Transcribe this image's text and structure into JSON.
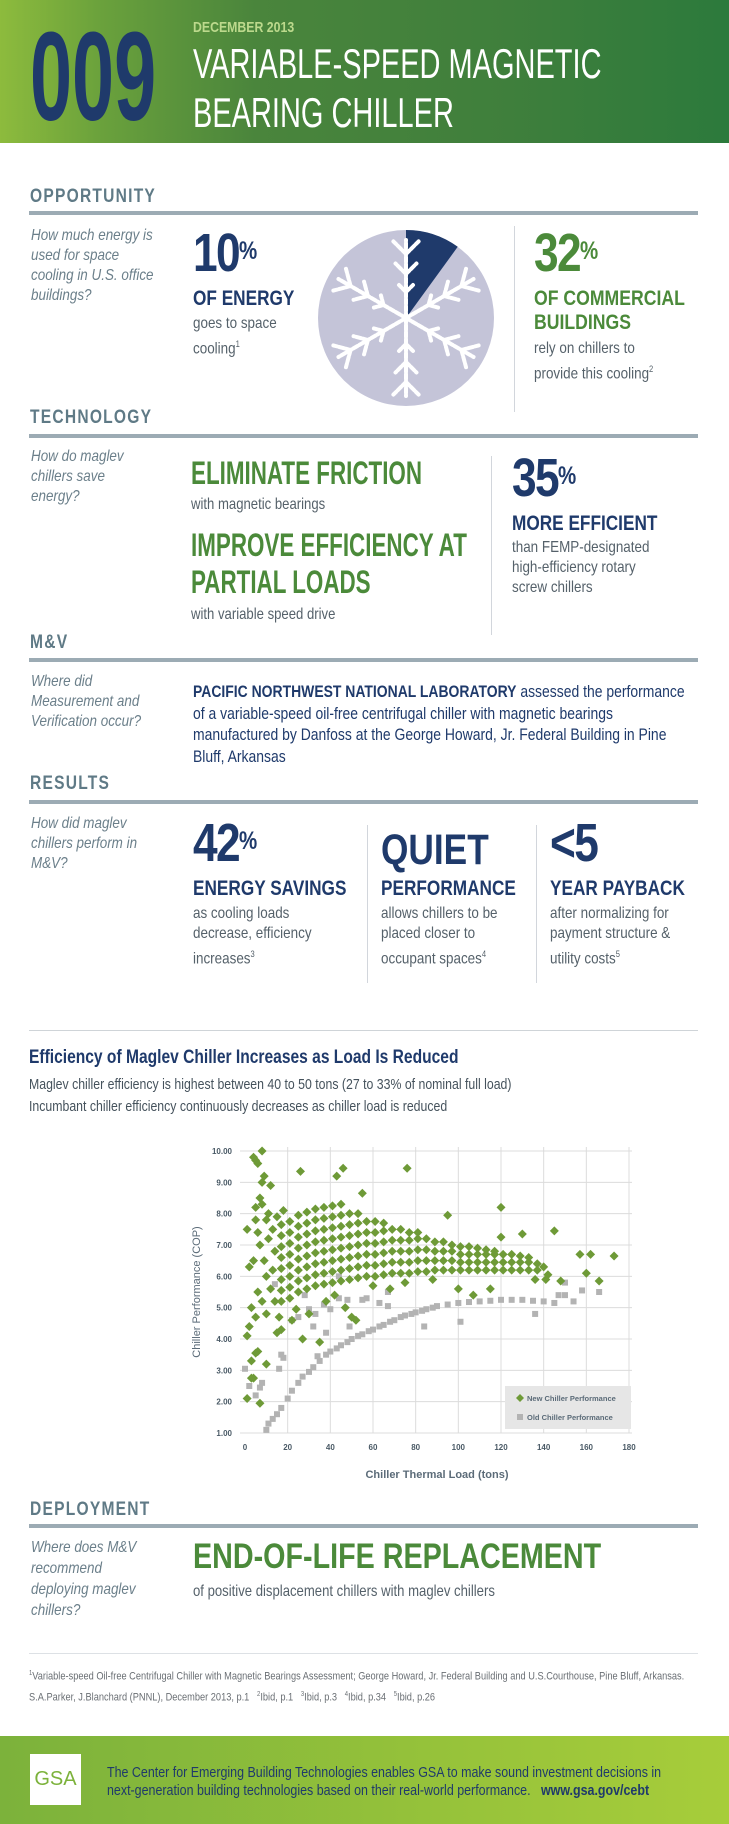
{
  "header": {
    "number": "009",
    "date": "DECEMBER 2013",
    "title_line1": "VARIABLE-SPEED MAGNETIC",
    "title_line2": "BEARING CHILLER"
  },
  "opportunity": {
    "heading": "OPPORTUNITY",
    "question": "How much energy is used for space cooling in U.S. office buildings?",
    "stat1": {
      "value": "10",
      "unit": "%",
      "label": "OF ENERGY",
      "text": "goes to space cooling",
      "note": "1"
    },
    "pie": {
      "share_percent": 10,
      "highlight_color": "#1f3a6b",
      "rest_color": "#c4c4d8",
      "icon": "snowflake-icon"
    },
    "stat2": {
      "value": "32",
      "unit": "%",
      "label": "OF COMMERCIAL BUILDINGS",
      "text": "rely on chillers to provide this cooling",
      "note": "2"
    }
  },
  "technology": {
    "heading": "TECHNOLOGY",
    "question": "How do maglev chillers save energy?",
    "point1": {
      "title": "ELIMINATE FRICTION",
      "text": "with magnetic bearings"
    },
    "point2": {
      "title": "IMPROVE EFFICIENCY AT PARTIAL LOADS",
      "text": "with variable speed drive"
    },
    "stat": {
      "value": "35",
      "unit": "%",
      "label": "MORE EFFICIENT",
      "text": "than FEMP-designated high-efficiency rotary screw chillers"
    }
  },
  "mv": {
    "heading": "M&V",
    "question": "Where did Measurement and Verification occur?",
    "lead": "PACIFIC NORTHWEST NATIONAL LABORATORY",
    "text": " assessed the performance of a variable-speed oil-free centrifugal chiller with magnetic bearings manufactured by Danfoss at the George Howard, Jr. Federal Building in Pine Bluff, Arkansas"
  },
  "results": {
    "heading": "RESULTS",
    "question": "How did maglev chillers perform in M&V?",
    "items": [
      {
        "value": "42",
        "unit": "%",
        "label": "ENERGY SAVINGS",
        "text": "as cooling loads decrease, efficiency increases",
        "note": "3"
      },
      {
        "value": "QUIET",
        "unit": "",
        "label": "PERFORMANCE",
        "text": "allows chillers to be placed closer to occupant spaces",
        "note": "4"
      },
      {
        "value": "<5",
        "unit": "",
        "label": "YEAR PAYBACK",
        "text": "after normalizing for payment structure & utility costs",
        "note": "5"
      }
    ]
  },
  "chart": {
    "title": "Efficiency of Maglev Chiller Increases as Load Is Reduced",
    "subtitle1": "Maglev chiller efficiency is highest between 40 to 50 tons (27 to 33% of nominal full load)",
    "subtitle2": "Incumbant chiller efficiency continuously decreases as chiller load is reduced"
  },
  "chart_data": {
    "type": "scatter",
    "title": "",
    "xlabel": "Chiller Thermal Load (tons)",
    "ylabel": "Chiller Performance (COP)",
    "xlim": [
      0,
      180
    ],
    "ylim": [
      1,
      10
    ],
    "grid": true,
    "legend": "bottom-right",
    "xticks": [
      "0",
      "20",
      "40",
      "60",
      "80",
      "100",
      "120",
      "140",
      "160",
      "180"
    ],
    "yticks": [
      "1.00",
      "2.00",
      "3.00",
      "4.00",
      "5.00",
      "6.00",
      "7.00",
      "8.00",
      "9.00",
      "10.00"
    ],
    "series": [
      {
        "name": "New Chiller Performance",
        "marker": "diamond",
        "color": "#6e9a37",
        "columns": [
          {
            "x": 17,
            "y": [
              5.2,
              5.55,
              5.9,
              6.25,
              6.6,
              6.95,
              7.3,
              7.65
            ]
          },
          {
            "x": 21,
            "y": [
              5.3,
              5.65,
              6.0,
              6.35,
              6.7,
              7.05,
              7.4,
              7.75
            ]
          },
          {
            "x": 25,
            "y": [
              5.5,
              5.85,
              6.2,
              6.55,
              6.9,
              7.25,
              7.6,
              7.95
            ]
          },
          {
            "x": 29,
            "y": [
              5.6,
              5.95,
              6.3,
              6.65,
              7.0,
              7.35,
              7.7,
              8.05
            ]
          },
          {
            "x": 33,
            "y": [
              5.7,
              6.05,
              6.4,
              6.75,
              7.1,
              7.45,
              7.8,
              8.15
            ]
          },
          {
            "x": 37,
            "y": [
              5.75,
              6.1,
              6.45,
              6.8,
              7.15,
              7.5,
              7.85,
              8.2
            ]
          },
          {
            "x": 41,
            "y": [
              5.8,
              6.15,
              6.5,
              6.85,
              7.2,
              7.55,
              7.9,
              8.25
            ]
          },
          {
            "x": 45,
            "y": [
              5.85,
              6.2,
              6.55,
              6.9,
              7.25,
              7.6,
              7.95,
              8.3
            ]
          },
          {
            "x": 49,
            "y": [
              5.9,
              6.25,
              6.6,
              6.95,
              7.3,
              7.65,
              8.0
            ]
          },
          {
            "x": 53,
            "y": [
              5.95,
              6.3,
              6.65,
              7.0,
              7.35,
              7.7,
              8.0
            ]
          },
          {
            "x": 57,
            "y": [
              6.0,
              6.35,
              6.7,
              7.05,
              7.4,
              7.75
            ]
          },
          {
            "x": 61,
            "y": [
              6.0,
              6.35,
              6.7,
              7.05,
              7.4,
              7.75
            ]
          },
          {
            "x": 65,
            "y": [
              6.05,
              6.4,
              6.75,
              7.1,
              7.45,
              7.7
            ]
          },
          {
            "x": 69,
            "y": [
              6.1,
              6.45,
              6.8,
              7.15,
              7.5
            ]
          },
          {
            "x": 73,
            "y": [
              6.1,
              6.45,
              6.8,
              7.15,
              7.5
            ]
          },
          {
            "x": 77,
            "y": [
              6.1,
              6.45,
              6.8,
              7.15,
              7.4
            ]
          },
          {
            "x": 81,
            "y": [
              6.15,
              6.5,
              6.85,
              7.2,
              7.4
            ]
          },
          {
            "x": 85,
            "y": [
              6.15,
              6.5,
              6.85,
              7.2
            ]
          },
          {
            "x": 89,
            "y": [
              6.2,
              6.5,
              6.8,
              7.1
            ]
          },
          {
            "x": 93,
            "y": [
              6.2,
              6.5,
              6.8,
              7.1
            ]
          },
          {
            "x": 97,
            "y": [
              6.2,
              6.5,
              6.8,
              7.0
            ]
          },
          {
            "x": 101,
            "y": [
              6.2,
              6.45,
              6.7,
              6.95
            ]
          },
          {
            "x": 105,
            "y": [
              6.2,
              6.45,
              6.7,
              6.95
            ]
          },
          {
            "x": 109,
            "y": [
              6.2,
              6.45,
              6.7,
              6.9
            ]
          },
          {
            "x": 113,
            "y": [
              6.2,
              6.45,
              6.7,
              6.85
            ]
          },
          {
            "x": 117,
            "y": [
              6.2,
              6.45,
              6.7,
              6.8
            ]
          },
          {
            "x": 121,
            "y": [
              6.2,
              6.45,
              6.7
            ]
          },
          {
            "x": 125,
            "y": [
              6.2,
              6.45,
              6.7
            ]
          },
          {
            "x": 129,
            "y": [
              6.2,
              6.45,
              6.65
            ]
          },
          {
            "x": 133,
            "y": [
              6.2,
              6.45,
              6.6
            ]
          },
          {
            "x": 137,
            "y": [
              6.2,
              6.4
            ]
          }
        ],
        "points": [
          [
            1,
            7.5
          ],
          [
            2,
            6.3
          ],
          [
            3,
            5.0
          ],
          [
            2,
            4.4
          ],
          [
            1,
            4.1
          ],
          [
            3,
            3.3
          ],
          [
            4,
            6.5
          ],
          [
            5,
            8.2
          ],
          [
            5,
            7.8
          ],
          [
            6,
            7.4
          ],
          [
            6,
            5.5
          ],
          [
            7,
            8.5
          ],
          [
            8,
            8.3
          ],
          [
            8,
            9.0
          ],
          [
            9,
            9.2
          ],
          [
            4,
            9.8
          ],
          [
            5,
            9.7
          ],
          [
            6,
            9.6
          ],
          [
            7,
            7.0
          ],
          [
            8,
            5.2
          ],
          [
            9,
            6.5
          ],
          [
            10,
            7.8
          ],
          [
            10,
            6.0
          ],
          [
            11,
            8.0
          ],
          [
            12,
            8.9
          ],
          [
            12,
            5.6
          ],
          [
            13,
            7.5
          ],
          [
            14,
            6.8
          ],
          [
            15,
            4.2
          ],
          [
            16,
            4.7
          ],
          [
            17,
            4.3
          ],
          [
            18,
            8.1
          ],
          [
            14,
            5.2
          ],
          [
            10,
            4.8
          ],
          [
            5,
            4.7
          ],
          [
            6,
            3.6
          ],
          [
            4,
            2.75
          ],
          [
            11,
            7.2
          ],
          [
            13,
            6.2
          ],
          [
            15,
            7.9
          ],
          [
            8,
            10.0
          ],
          [
            26,
            9.35
          ],
          [
            43,
            9.2
          ],
          [
            46,
            9.45
          ],
          [
            76,
            9.45
          ],
          [
            55,
            8.65
          ],
          [
            120,
            8.2
          ],
          [
            95,
            7.95
          ],
          [
            145,
            7.45
          ],
          [
            130,
            7.35
          ],
          [
            120,
            7.25
          ],
          [
            157,
            6.7
          ],
          [
            162,
            6.7
          ],
          [
            173,
            6.65
          ],
          [
            160,
            6.1
          ],
          [
            166,
            5.85
          ],
          [
            148,
            5.85
          ],
          [
            1,
            2.1
          ],
          [
            7,
            1.95
          ],
          [
            3,
            2.75
          ],
          [
            10,
            3.2
          ],
          [
            5,
            3.55
          ],
          [
            35,
            3.9
          ],
          [
            27,
            4.0
          ],
          [
            50,
            4.7
          ],
          [
            24,
            4.95
          ],
          [
            22,
            4.6
          ],
          [
            30,
            4.8
          ],
          [
            38,
            5.2
          ],
          [
            42,
            5.4
          ],
          [
            47,
            5.0
          ],
          [
            52,
            4.6
          ],
          [
            60,
            5.7
          ],
          [
            68,
            5.6
          ],
          [
            75,
            5.8
          ],
          [
            88,
            5.9
          ],
          [
            100,
            5.6
          ],
          [
            107,
            5.4
          ],
          [
            115,
            5.6
          ],
          [
            136,
            5.9
          ],
          [
            140,
            6.3
          ],
          [
            142,
            6.05
          ],
          [
            141,
            5.9
          ]
        ]
      },
      {
        "name": "Old Chiller Performance",
        "marker": "square",
        "color": "#b3b3b3",
        "points": [
          [
            10,
            1.1
          ],
          [
            11,
            1.3
          ],
          [
            13,
            1.45
          ],
          [
            15,
            1.6
          ],
          [
            17,
            1.8
          ],
          [
            20,
            2.1
          ],
          [
            22,
            2.35
          ],
          [
            25,
            2.6
          ],
          [
            27,
            2.8
          ],
          [
            30,
            2.95
          ],
          [
            32,
            3.1
          ],
          [
            35,
            3.3
          ],
          [
            38,
            3.5
          ],
          [
            40,
            3.6
          ],
          [
            43,
            3.7
          ],
          [
            45,
            3.8
          ],
          [
            48,
            3.9
          ],
          [
            50,
            4.0
          ],
          [
            53,
            4.1
          ],
          [
            55,
            4.15
          ],
          [
            58,
            4.25
          ],
          [
            60,
            4.3
          ],
          [
            63,
            4.4
          ],
          [
            65,
            4.45
          ],
          [
            68,
            4.55
          ],
          [
            70,
            4.6
          ],
          [
            73,
            4.7
          ],
          [
            75,
            4.75
          ],
          [
            78,
            4.8
          ],
          [
            80,
            4.85
          ],
          [
            83,
            4.9
          ],
          [
            85,
            4.95
          ],
          [
            88,
            5.0
          ],
          [
            90,
            5.05
          ],
          [
            95,
            5.1
          ],
          [
            100,
            5.15
          ],
          [
            105,
            5.18
          ],
          [
            110,
            5.2
          ],
          [
            115,
            5.22
          ],
          [
            120,
            5.25
          ],
          [
            125,
            5.25
          ],
          [
            130,
            5.25
          ],
          [
            135,
            5.22
          ],
          [
            140,
            5.2
          ],
          [
            145,
            5.15
          ],
          [
            0,
            3.05
          ],
          [
            2,
            2.5
          ],
          [
            5,
            2.2
          ],
          [
            7,
            2.45
          ],
          [
            8,
            2.6
          ],
          [
            17,
            3.5
          ],
          [
            16,
            3.05
          ],
          [
            18,
            3.4
          ],
          [
            14,
            5.75
          ],
          [
            22,
            4.6
          ],
          [
            25,
            4.7
          ],
          [
            28,
            5.4
          ],
          [
            30,
            4.95
          ],
          [
            32,
            4.4
          ],
          [
            33,
            4.8
          ],
          [
            34,
            3.45
          ],
          [
            37,
            5.1
          ],
          [
            38,
            4.2
          ],
          [
            40,
            4.95
          ],
          [
            44,
            5.3
          ],
          [
            44,
            6.0
          ],
          [
            48,
            5.25
          ],
          [
            49,
            4.4
          ],
          [
            55,
            5.25
          ],
          [
            57,
            5.3
          ],
          [
            63,
            5.15
          ],
          [
            67,
            5.5
          ],
          [
            67,
            5.05
          ],
          [
            84,
            4.4
          ],
          [
            101,
            4.55
          ],
          [
            136,
            4.8
          ],
          [
            147,
            5.4
          ],
          [
            150,
            5.4
          ],
          [
            150,
            5.8
          ],
          [
            154,
            5.2
          ],
          [
            158,
            5.55
          ],
          [
            166,
            5.5
          ]
        ]
      }
    ]
  },
  "deployment": {
    "heading": "DEPLOYMENT",
    "question": "Where does M&V recommend deploying maglev chillers?",
    "title": "END-OF-LIFE REPLACEMENT",
    "text": "of positive displacement chillers with maglev chillers"
  },
  "footnotes": {
    "n1": "1",
    "t1": "Variable-speed Oil-free Centrifugal Chiller with Magnetic Bearings Assessment; George Howard, Jr. Federal Building and U.S.Courthouse, Pine Bluff, Arkansas. S.A.Parker, J.Blanchard (PNNL), December 2013, p.1",
    "n2": "2",
    "t2": "Ibid, p.1",
    "n3": "3",
    "t3": "Ibid, p.3",
    "n4": "4",
    "t4": "Ibid, p.34",
    "n5": "5",
    "t5": "Ibid, p.26"
  },
  "footer": {
    "logo": "GSA",
    "text": "The Center for Emerging Building Technologies enables GSA to make sound investment decisions in next-generation building technologies based on their real-world performance.",
    "url": "www.gsa.gov/cebt"
  }
}
